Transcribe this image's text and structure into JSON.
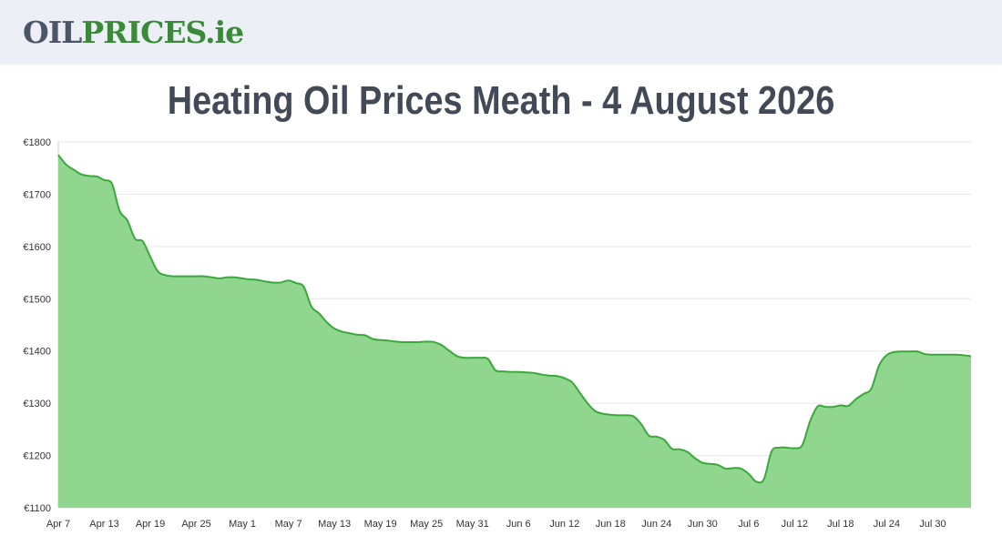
{
  "header": {
    "logo_oil": "OIL",
    "logo_prices": "PRICES",
    "logo_ie": ".ie"
  },
  "title": "Heating Oil Prices Meath - 4 August 2026",
  "colors": {
    "fill": "#90d68f",
    "line": "#3aa83a",
    "grid": "#e6e6e6",
    "title": "#434a57"
  },
  "chart_data": {
    "type": "area",
    "title": "Heating Oil Prices Meath - 4 August 2026",
    "xlabel": "",
    "ylabel": "",
    "ylim": [
      1100,
      1800
    ],
    "yticks": [
      "€1100",
      "€1200",
      "€1300",
      "€1400",
      "€1500",
      "€1600",
      "€1700",
      "€1800"
    ],
    "ytick_values": [
      1100,
      1200,
      1300,
      1400,
      1500,
      1600,
      1700,
      1800
    ],
    "xticks": [
      {
        "label": "Apr 7",
        "day": 0
      },
      {
        "label": "Apr 13",
        "day": 6
      },
      {
        "label": "Apr 19",
        "day": 12
      },
      {
        "label": "Apr 25",
        "day": 18
      },
      {
        "label": "May 1",
        "day": 24
      },
      {
        "label": "May 7",
        "day": 30
      },
      {
        "label": "May 13",
        "day": 36
      },
      {
        "label": "May 19",
        "day": 42
      },
      {
        "label": "May 25",
        "day": 48
      },
      {
        "label": "May 31",
        "day": 54
      },
      {
        "label": "Jun 6",
        "day": 60
      },
      {
        "label": "Jun 12",
        "day": 66
      },
      {
        "label": "Jun 18",
        "day": 72
      },
      {
        "label": "Jun 24",
        "day": 78
      },
      {
        "label": "Jun 30",
        "day": 84
      },
      {
        "label": "Jul 6",
        "day": 90
      },
      {
        "label": "Jul 12",
        "day": 96
      },
      {
        "label": "Jul 18",
        "day": 102
      },
      {
        "label": "Jul 24",
        "day": 108
      },
      {
        "label": "Jul 30",
        "day": 114
      }
    ],
    "x_range_days": [
      0,
      119
    ],
    "grid": true,
    "legend": "none",
    "series": [
      {
        "values": [
          [
            0,
            1775
          ],
          [
            1,
            1757
          ],
          [
            2,
            1747
          ],
          [
            3,
            1738
          ],
          [
            4,
            1735
          ],
          [
            5,
            1734
          ],
          [
            6,
            1727
          ],
          [
            7,
            1720
          ],
          [
            8,
            1668
          ],
          [
            9,
            1650
          ],
          [
            10,
            1615
          ],
          [
            11,
            1610
          ],
          [
            12,
            1580
          ],
          [
            13,
            1552
          ],
          [
            14,
            1545
          ],
          [
            15,
            1543
          ],
          [
            16,
            1543
          ],
          [
            17,
            1543
          ],
          [
            18,
            1543
          ],
          [
            19,
            1543
          ],
          [
            20,
            1541
          ],
          [
            21,
            1539
          ],
          [
            22,
            1541
          ],
          [
            23,
            1541
          ],
          [
            24,
            1539
          ],
          [
            25,
            1537
          ],
          [
            26,
            1536
          ],
          [
            27,
            1533
          ],
          [
            28,
            1531
          ],
          [
            29,
            1531
          ],
          [
            30,
            1535
          ],
          [
            31,
            1530
          ],
          [
            32,
            1523
          ],
          [
            33,
            1485
          ],
          [
            34,
            1472
          ],
          [
            35,
            1455
          ],
          [
            36,
            1443
          ],
          [
            37,
            1437
          ],
          [
            38,
            1434
          ],
          [
            39,
            1431
          ],
          [
            40,
            1430
          ],
          [
            41,
            1423
          ],
          [
            42,
            1421
          ],
          [
            43,
            1420
          ],
          [
            44,
            1418
          ],
          [
            45,
            1417
          ],
          [
            46,
            1417
          ],
          [
            47,
            1417
          ],
          [
            48,
            1418
          ],
          [
            49,
            1417
          ],
          [
            50,
            1411
          ],
          [
            51,
            1400
          ],
          [
            52,
            1390
          ],
          [
            53,
            1387
          ],
          [
            54,
            1387
          ],
          [
            55,
            1387
          ],
          [
            56,
            1385
          ],
          [
            57,
            1363
          ],
          [
            58,
            1361
          ],
          [
            59,
            1360
          ],
          [
            60,
            1360
          ],
          [
            61,
            1359
          ],
          [
            62,
            1358
          ],
          [
            63,
            1355
          ],
          [
            64,
            1353
          ],
          [
            65,
            1352
          ],
          [
            66,
            1348
          ],
          [
            67,
            1340
          ],
          [
            68,
            1320
          ],
          [
            69,
            1300
          ],
          [
            70,
            1285
          ],
          [
            71,
            1280
          ],
          [
            72,
            1278
          ],
          [
            73,
            1277
          ],
          [
            74,
            1277
          ],
          [
            75,
            1275
          ],
          [
            76,
            1260
          ],
          [
            77,
            1238
          ],
          [
            78,
            1236
          ],
          [
            79,
            1230
          ],
          [
            80,
            1213
          ],
          [
            81,
            1212
          ],
          [
            82,
            1207
          ],
          [
            83,
            1195
          ],
          [
            84,
            1186
          ],
          [
            85,
            1184
          ],
          [
            86,
            1182
          ],
          [
            87,
            1175
          ],
          [
            88,
            1176
          ],
          [
            89,
            1175
          ],
          [
            90,
            1165
          ],
          [
            91,
            1150
          ],
          [
            92,
            1155
          ],
          [
            93,
            1208
          ],
          [
            94,
            1215
          ],
          [
            95,
            1215
          ],
          [
            96,
            1214
          ],
          [
            97,
            1220
          ],
          [
            98,
            1265
          ],
          [
            99,
            1294
          ],
          [
            100,
            1293
          ],
          [
            101,
            1293
          ],
          [
            102,
            1296
          ],
          [
            103,
            1295
          ],
          [
            104,
            1308
          ],
          [
            105,
            1318
          ],
          [
            106,
            1328
          ],
          [
            107,
            1372
          ],
          [
            108,
            1392
          ],
          [
            109,
            1398
          ],
          [
            110,
            1399
          ],
          [
            111,
            1399
          ],
          [
            112,
            1399
          ],
          [
            113,
            1394
          ],
          [
            114,
            1393
          ],
          [
            115,
            1393
          ],
          [
            116,
            1393
          ],
          [
            117,
            1393
          ],
          [
            118,
            1392
          ],
          [
            119,
            1390
          ]
        ]
      }
    ]
  }
}
